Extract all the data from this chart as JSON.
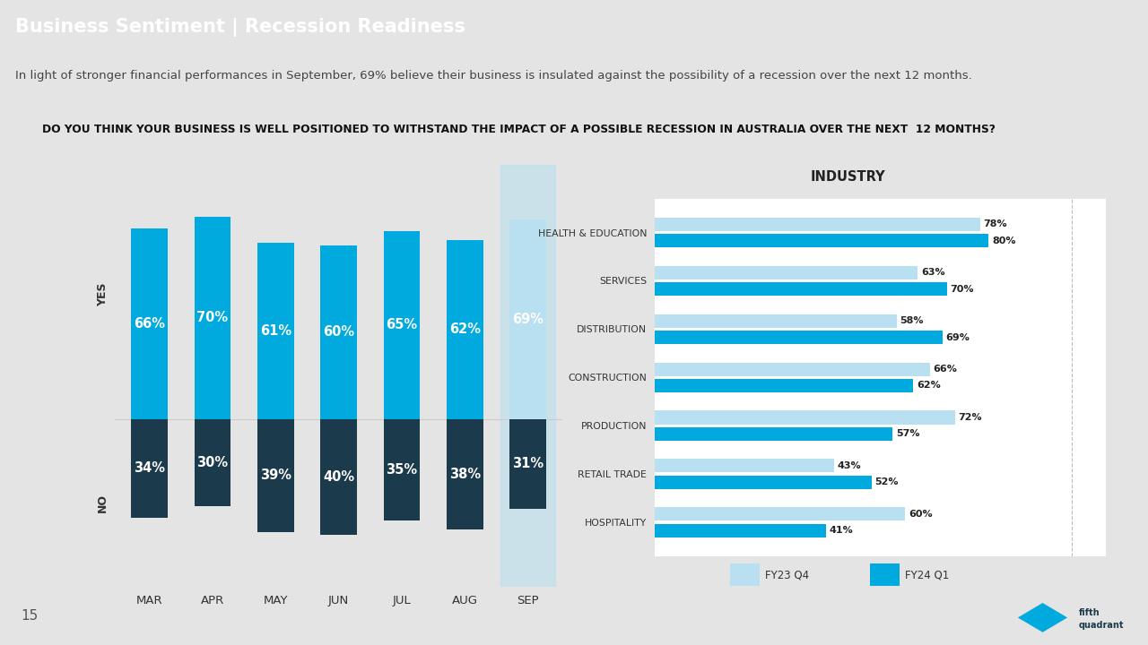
{
  "title": "Business Sentiment | Recession Readiness",
  "subtitle": "In light of stronger financial performances in September, 69% believe their business is insulated against the possibility of a recession over the next 12 months.",
  "question": "DO YOU THINK YOUR BUSINESS IS WELL POSITIONED TO WITHSTAND THE IMPACT OF A POSSIBLE RECESSION IN AUSTRALIA OVER THE NEXT  12 MONTHS?",
  "header_bg": "#1b3a4b",
  "subtitle_bg": "#d4d4d4",
  "page_bg": "#e4e4e4",
  "chart_bg": "#e4e4e4",
  "months": [
    "MAR",
    "APR",
    "MAY",
    "JUN",
    "JUL",
    "AUG",
    "SEP"
  ],
  "yes_values": [
    66,
    70,
    61,
    60,
    65,
    62,
    69
  ],
  "no_values": [
    34,
    30,
    39,
    40,
    35,
    38,
    31
  ],
  "bar_color_yes": "#00aade",
  "bar_color_no": "#1b3a4b",
  "bar_color_sep_yes": "#b8e0f0",
  "highlight_index": 6,
  "industries": [
    "HEALTH & EDUCATION",
    "SERVICES",
    "DISTRIBUTION",
    "CONSTRUCTION",
    "PRODUCTION",
    "RETAIL TRADE",
    "HOSPITALITY"
  ],
  "fy23_q4": [
    78,
    63,
    58,
    66,
    72,
    43,
    60
  ],
  "fy24_q1": [
    80,
    70,
    69,
    62,
    57,
    52,
    41
  ],
  "ind_color_fy23": "#b8e0f0",
  "ind_color_fy24": "#00aade",
  "industry_title": "INDUSTRY",
  "legend_fy23": "FY23 Q4",
  "legend_fy24": "FY24 Q1",
  "page_number": "15"
}
